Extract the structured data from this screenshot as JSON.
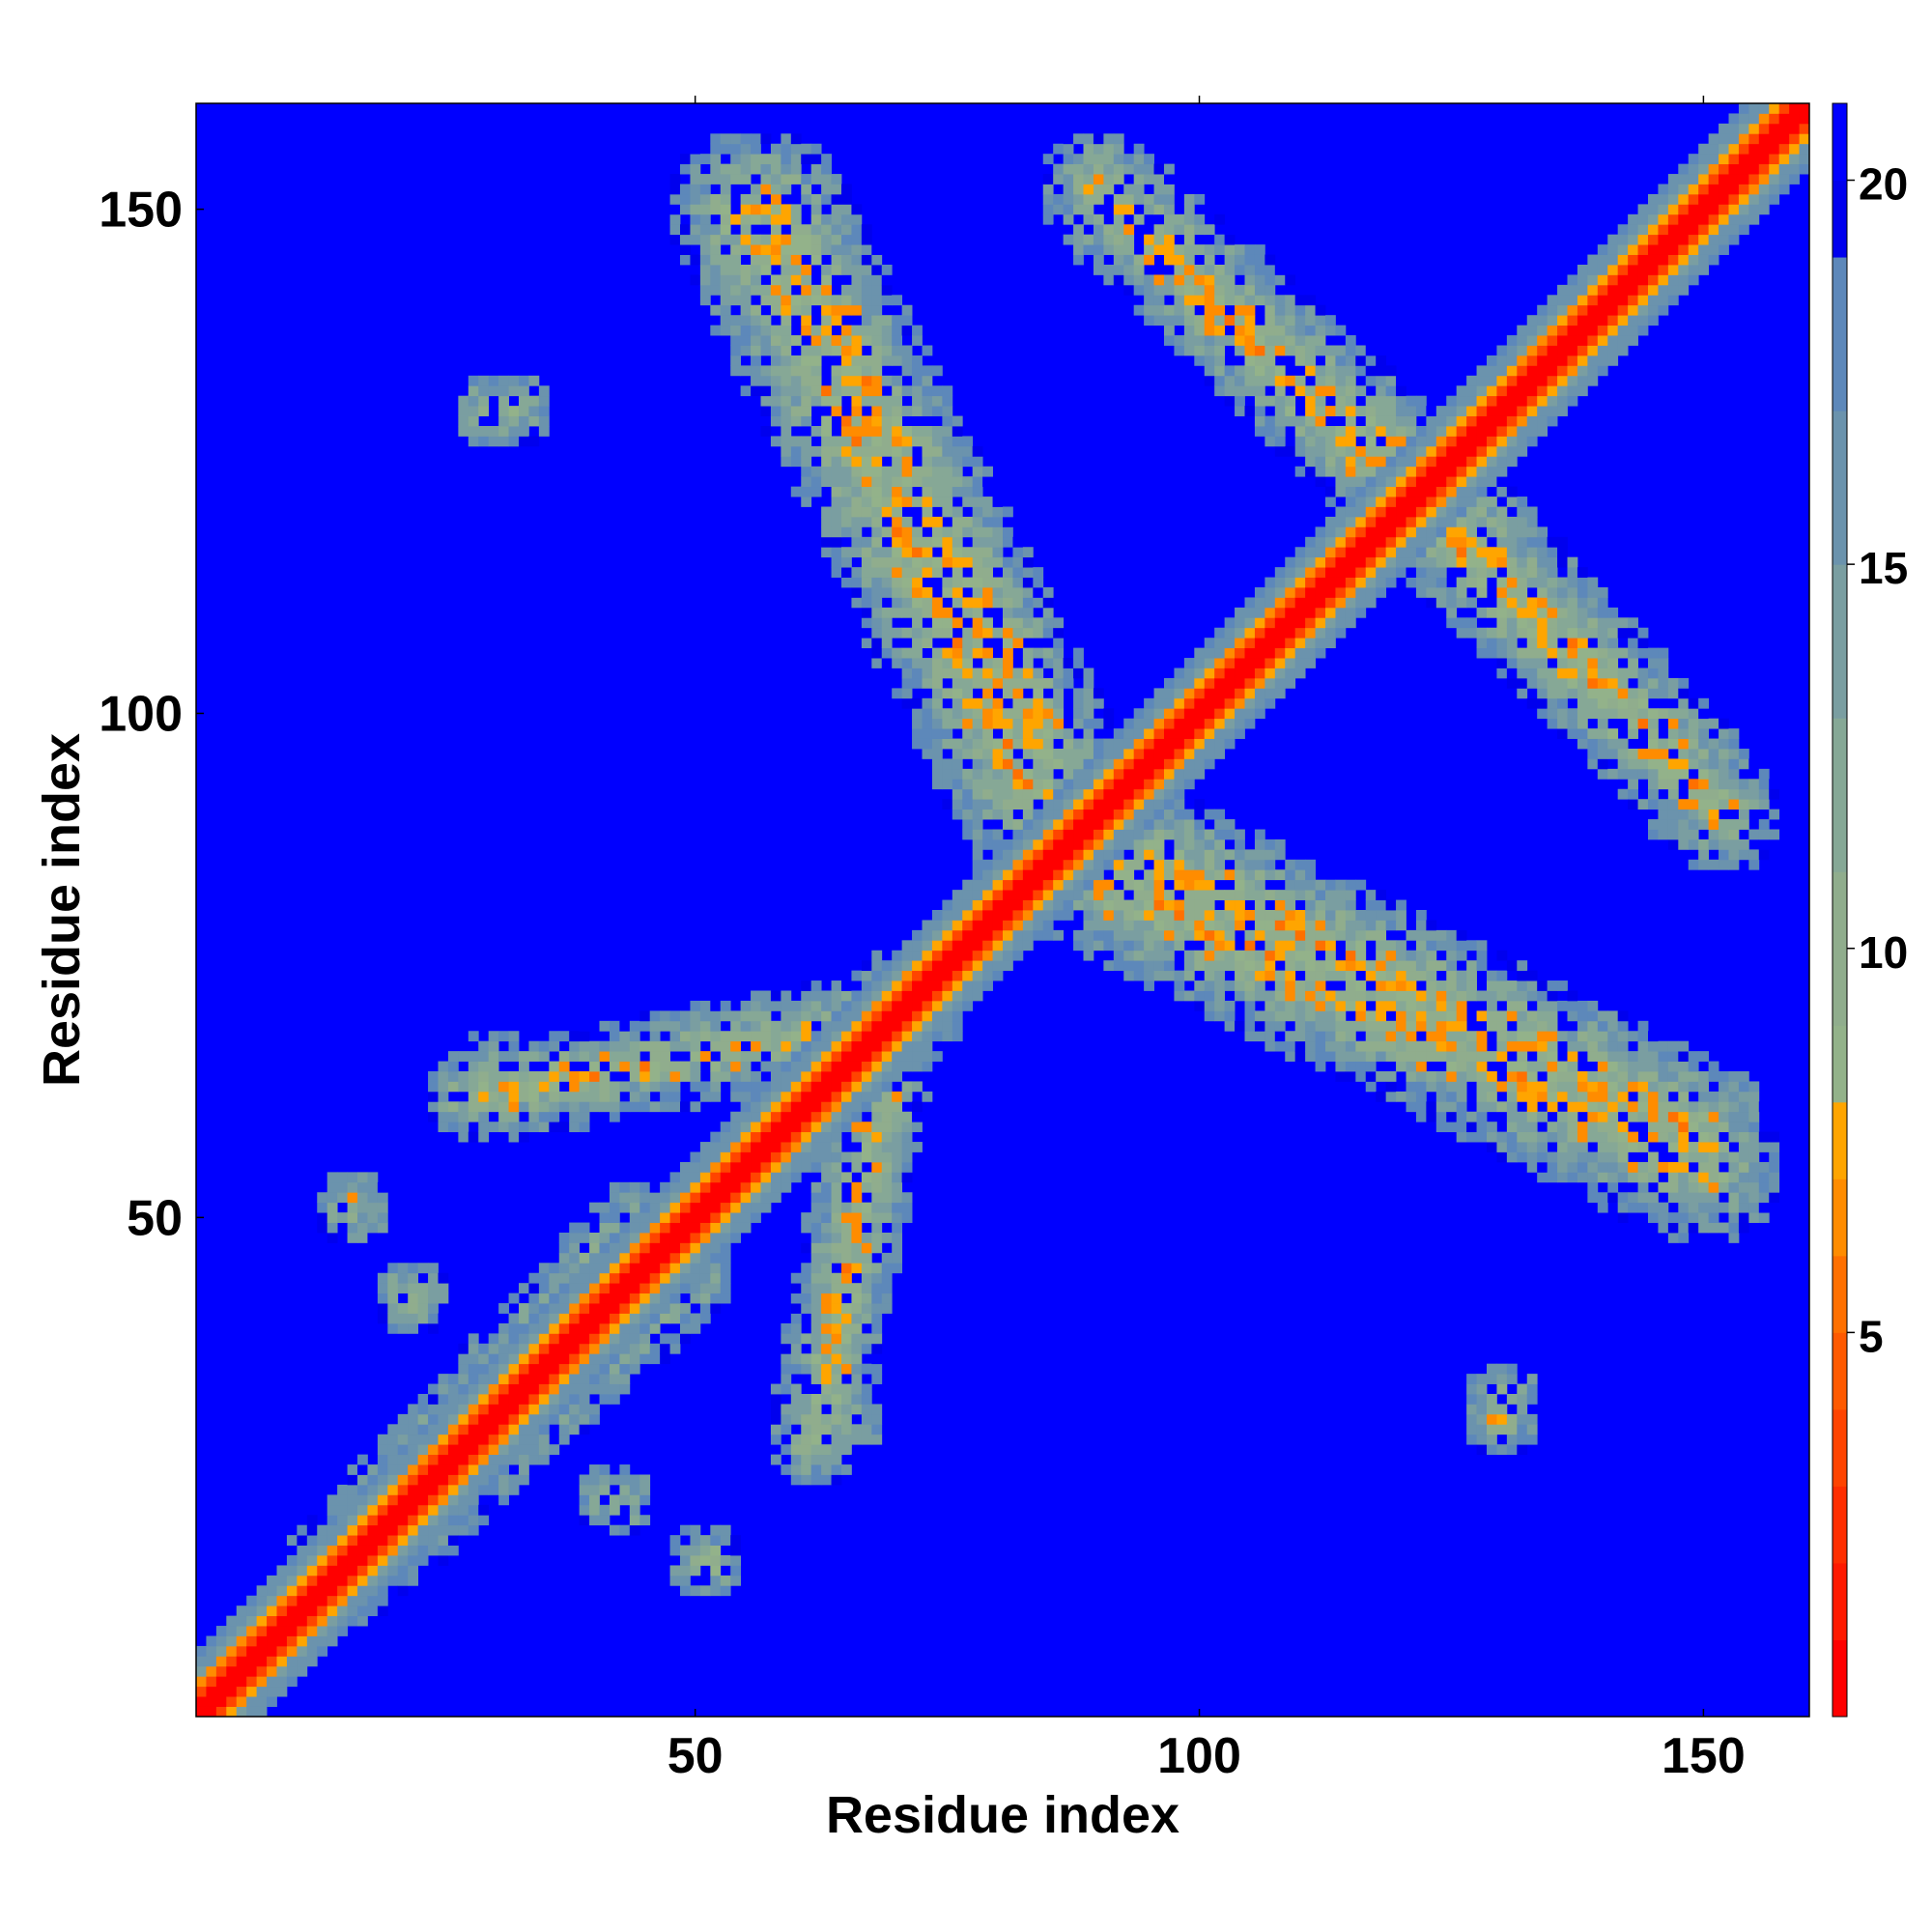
{
  "chart_data": {
    "type": "heatmap",
    "title": "",
    "xlabel": "Residue index",
    "ylabel": "Residue index",
    "xlim": [
      1,
      160
    ],
    "ylim": [
      1,
      160
    ],
    "x_ticks": [
      50,
      100,
      150
    ],
    "y_ticks": [
      50,
      100,
      150
    ],
    "colorbar": {
      "range": [
        0,
        21
      ],
      "ticks": [
        5,
        10,
        15,
        20
      ],
      "colors": [
        {
          "max": 1,
          "color": "#ff0000"
        },
        {
          "max": 2,
          "color": "#ff1a00"
        },
        {
          "max": 3,
          "color": "#ff2e00"
        },
        {
          "max": 4,
          "color": "#ff4400"
        },
        {
          "max": 5,
          "color": "#ff5a00"
        },
        {
          "max": 6,
          "color": "#ff7000"
        },
        {
          "max": 7,
          "color": "#ff8c00"
        },
        {
          "max": 8,
          "color": "#ffa500"
        },
        {
          "max": 9,
          "color": "#93b28a"
        },
        {
          "max": 11,
          "color": "#90ad8d"
        },
        {
          "max": 13,
          "color": "#86a896"
        },
        {
          "max": 15,
          "color": "#7a9ea1"
        },
        {
          "max": 17,
          "color": "#6b93ad"
        },
        {
          "max": 19,
          "color": "#5d88ba"
        },
        {
          "max": 20,
          "color": "#0000ee"
        },
        {
          "max": 21,
          "color": "#0000ff"
        }
      ]
    },
    "diagonal_band": {
      "from": 1,
      "to": 160
    },
    "contact_regions": [
      {
        "name": "helix-pair-lower-left",
        "x_range": [
          15,
          50
        ],
        "y_range": [
          15,
          50
        ]
      },
      {
        "name": "strip-upper-left",
        "x_range": [
          50,
          90
        ],
        "y_range": [
          90,
          155
        ]
      },
      {
        "name": "arm-upper-right",
        "x_range": [
          90,
          130
        ],
        "y_range": [
          120,
          158
        ]
      },
      {
        "name": "arm-right",
        "x_range": [
          110,
          155
        ],
        "y_range": [
          90,
          125
        ]
      },
      {
        "name": "arm-lower-right",
        "x_range": [
          90,
          150
        ],
        "y_range": [
          50,
          85
        ]
      },
      {
        "name": "cluster-left",
        "x_range": [
          25,
          40
        ],
        "y_range": [
          125,
          135
        ]
      },
      {
        "name": "cluster-mid-left",
        "x_range": [
          25,
          75
        ],
        "y_range": [
          55,
          75
        ]
      },
      {
        "name": "cluster-bottom",
        "x_range": [
          40,
          60
        ],
        "y_range": [
          10,
          20
        ]
      },
      {
        "name": "cluster-lower-right",
        "x_range": [
          125,
          135
        ],
        "y_range": [
          25,
          35
        ]
      }
    ],
    "grid": false,
    "legend": "colorbar-right"
  }
}
